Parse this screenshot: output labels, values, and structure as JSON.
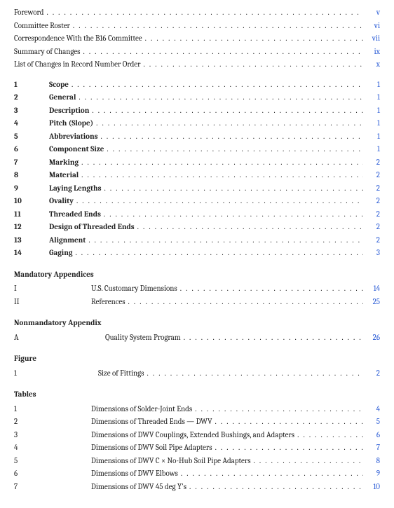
{
  "front_matter": [
    {
      "title": "Foreword",
      "page": "v"
    },
    {
      "title": "Committee Roster",
      "page": "vi"
    },
    {
      "title": "Correspondence With the B16 Committee",
      "page": "vii"
    },
    {
      "title": "Summary of Changes",
      "page": "ix"
    },
    {
      "title": "List of Changes in Record Number Order",
      "page": "x"
    }
  ],
  "chapters": [
    {
      "num": "1",
      "title": "Scope",
      "page": "1"
    },
    {
      "num": "2",
      "title": "General",
      "page": "1"
    },
    {
      "num": "3",
      "title": "Description",
      "page": "1"
    },
    {
      "num": "4",
      "title": "Pitch (Slope)",
      "page": "1"
    },
    {
      "num": "5",
      "title": "Abbreviations",
      "page": "1"
    },
    {
      "num": "6",
      "title": "Component Size",
      "page": "1"
    },
    {
      "num": "7",
      "title": "Marking",
      "page": "2"
    },
    {
      "num": "8",
      "title": "Material",
      "page": "2"
    },
    {
      "num": "9",
      "title": "Laying Lengths",
      "page": "2"
    },
    {
      "num": "10",
      "title": "Ovality",
      "page": "2"
    },
    {
      "num": "11",
      "title": "Threaded Ends",
      "page": "2"
    },
    {
      "num": "12",
      "title": "Design of Threaded Ends",
      "page": "2"
    },
    {
      "num": "13",
      "title": "Alignment",
      "page": "2"
    },
    {
      "num": "14",
      "title": "Gaging",
      "page": "3"
    }
  ],
  "mandatory_heading": "Mandatory Appendices",
  "mandatory": [
    {
      "num": "I",
      "title": "U.S. Customary Dimensions",
      "page": "14"
    },
    {
      "num": "II",
      "title": "References",
      "page": "25"
    }
  ],
  "nonmandatory_heading": "Nonmandatory Appendix",
  "nonmandatory": [
    {
      "num": "A",
      "title": "Quality System Program",
      "page": "26"
    }
  ],
  "figure_heading": "Figure",
  "figures": [
    {
      "num": "1",
      "title": "Size of Fittings",
      "page": "2"
    }
  ],
  "tables_heading": "Tables",
  "tables": [
    {
      "num": "1",
      "title": "Dimensions of Solder-Joint Ends",
      "page": "4"
    },
    {
      "num": "2",
      "title": "Dimensions of Threaded Ends — DWV",
      "page": "5"
    },
    {
      "num": "3",
      "title": "Dimensions of DWV Couplings, Extended Bushings, and Adapters",
      "page": "6"
    },
    {
      "num": "4",
      "title": "Dimensions of DWV Soil Pipe Adapters",
      "page": "7"
    },
    {
      "num": "5",
      "title": "Dimensions of DWV C × No-Hub Soil Pipe Adapters",
      "page": "8"
    },
    {
      "num": "6",
      "title": "Dimensions of DWV Elbows",
      "page": "9"
    },
    {
      "num": "7",
      "title": "Dimensions of DWV 45 deg Y's",
      "page": "10"
    }
  ],
  "colors": {
    "link": "#2b5cd6",
    "text": "#222222",
    "background": "#ffffff"
  },
  "typography": {
    "base_fontsize_pt": 8,
    "font_family": "Cambria / Georgia serif",
    "bold_weight": 700
  }
}
